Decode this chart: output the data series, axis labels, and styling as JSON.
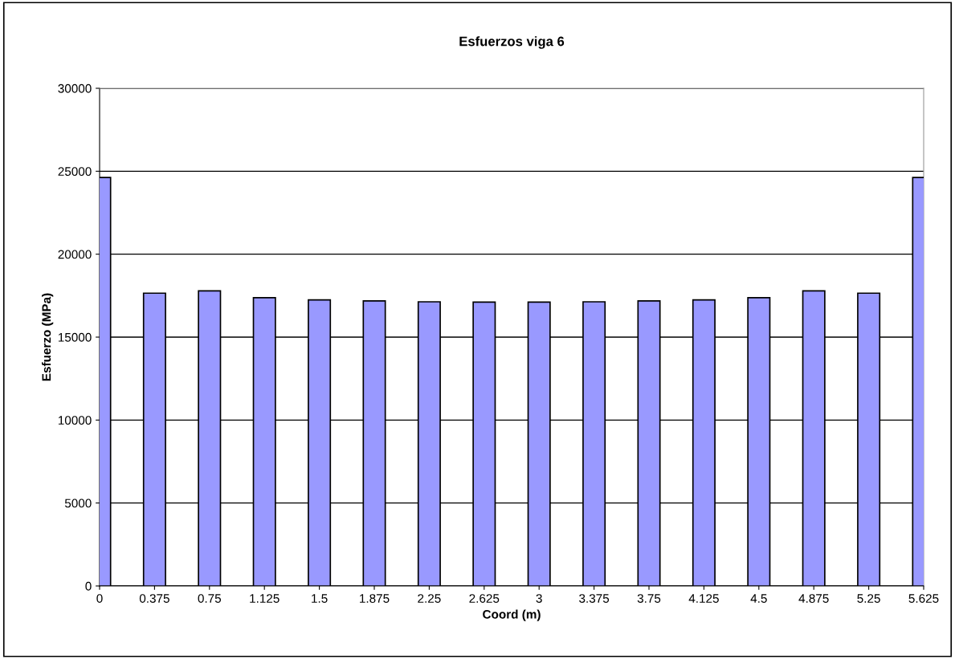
{
  "chart_data": {
    "type": "bar",
    "title": "Esfuerzos viga 6",
    "xlabel": "Coord (m)",
    "ylabel": "Esfuerzo (MPa)",
    "categories": [
      "0",
      "0.375",
      "0.75",
      "1.125",
      "1.5",
      "1.875",
      "2.25",
      "2.625",
      "3",
      "3.375",
      "3.75",
      "4.125",
      "4.5",
      "4.875",
      "5.25",
      "5.625"
    ],
    "values": [
      24620,
      17650,
      17790,
      17380,
      17240,
      17180,
      17130,
      17110,
      17110,
      17130,
      17180,
      17240,
      17380,
      17790,
      17650,
      24620
    ],
    "color": "#9999ff",
    "ylim": [
      0,
      30000
    ],
    "yticks": [
      0,
      5000,
      10000,
      15000,
      20000,
      25000,
      30000
    ],
    "grid": "y",
    "legend": false
  }
}
